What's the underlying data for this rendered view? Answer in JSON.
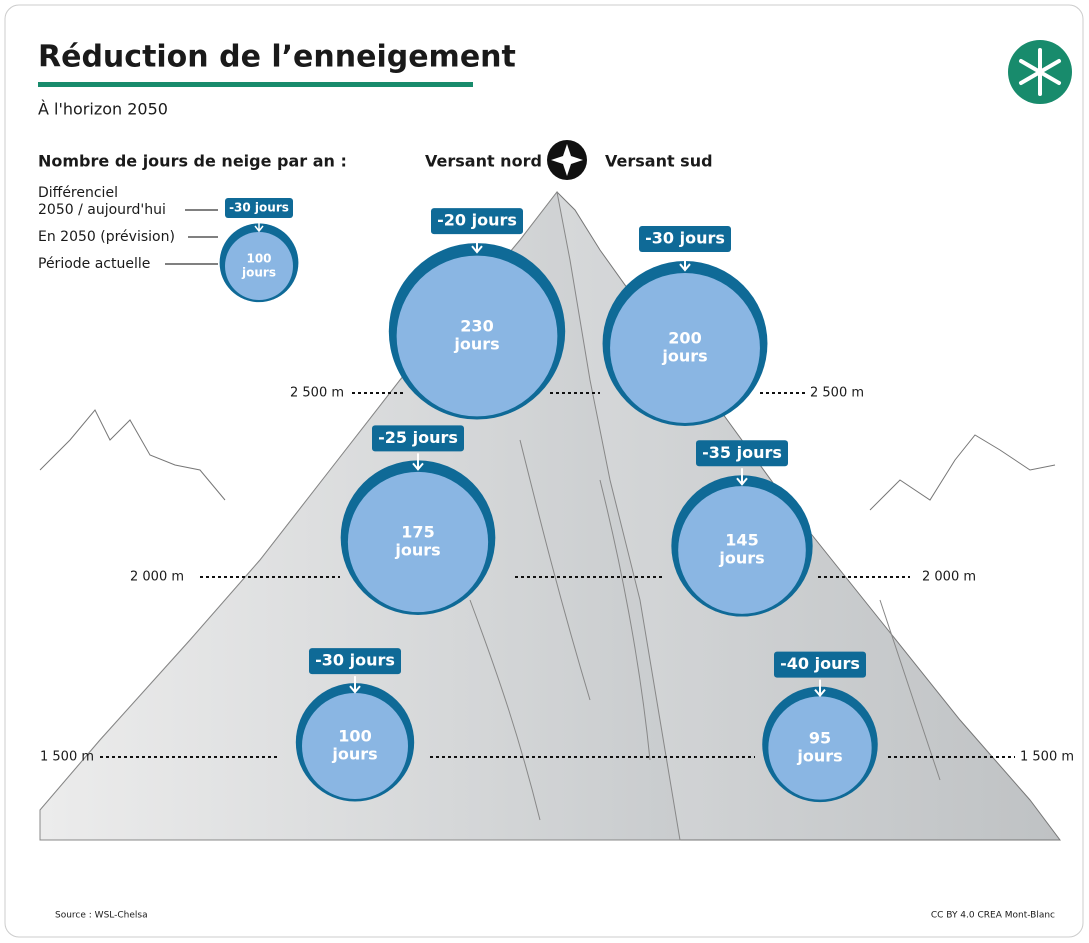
{
  "header": {
    "title": "Réduction de l’enneigement",
    "subtitle": "À l'horizon 2050"
  },
  "legend": {
    "heading": "Nombre de jours de neige par an :",
    "diff_lines": [
      "Différenciel",
      "2050 / aujourd'hui"
    ],
    "forecast": "En 2050 (prévision)",
    "current": "Période actuelle",
    "example_diff": "-30 jours",
    "example_days": 100,
    "example_unit": "jours"
  },
  "slopes": {
    "north": "Versant nord",
    "south": "Versant sud"
  },
  "altitudes": [
    "2 500 m",
    "2 000 m",
    "1 500 m"
  ],
  "north": [
    {
      "diff": "-20 jours",
      "days": 230,
      "unit": "jours"
    },
    {
      "diff": "-25 jours",
      "days": 175,
      "unit": "jours"
    },
    {
      "diff": "-30 jours",
      "days": 100,
      "unit": "jours"
    }
  ],
  "south": [
    {
      "diff": "-30 jours",
      "days": 200,
      "unit": "jours"
    },
    {
      "diff": "-35 jours",
      "days": 145,
      "unit": "jours"
    },
    {
      "diff": "-40 jours",
      "days": 95,
      "unit": "jours"
    }
  ],
  "footer": {
    "source": "Source : WSL-Chelsa",
    "credit": "CC BY 4.0 CREA Mont-Blanc"
  }
}
